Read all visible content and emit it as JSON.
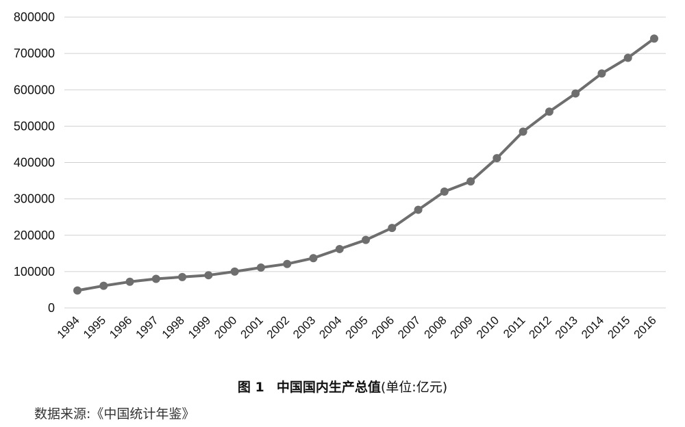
{
  "caption": {
    "figure_label": "图 1",
    "title": "中国国内生产总值",
    "unit": "(单位:亿元)"
  },
  "source_note": "数据来源:《中国统计年鉴》",
  "chart_data": {
    "type": "line",
    "title": "中国国内生产总值",
    "ylabel": "",
    "xlabel": "",
    "ylim": [
      0,
      800000
    ],
    "yticks": [
      0,
      100000,
      200000,
      300000,
      400000,
      500000,
      600000,
      700000,
      800000
    ],
    "ytick_labels": [
      "0",
      "100000",
      "200000",
      "300000",
      "400000",
      "500000",
      "600000",
      "700000",
      "800000"
    ],
    "grid": true,
    "color": "#6e6e6e",
    "categories": [
      "1994",
      "1995",
      "1996",
      "1997",
      "1998",
      "1999",
      "2000",
      "2001",
      "2002",
      "2003",
      "2004",
      "2005",
      "2006",
      "2007",
      "2008",
      "2009",
      "2010",
      "2011",
      "2012",
      "2013",
      "2014",
      "2015",
      "2016"
    ],
    "values": [
      48000,
      61000,
      72000,
      80000,
      85000,
      90000,
      100000,
      111000,
      121000,
      137000,
      162000,
      187000,
      220000,
      270000,
      320000,
      348000,
      412000,
      485000,
      540000,
      590000,
      645000,
      688000,
      741000
    ]
  }
}
